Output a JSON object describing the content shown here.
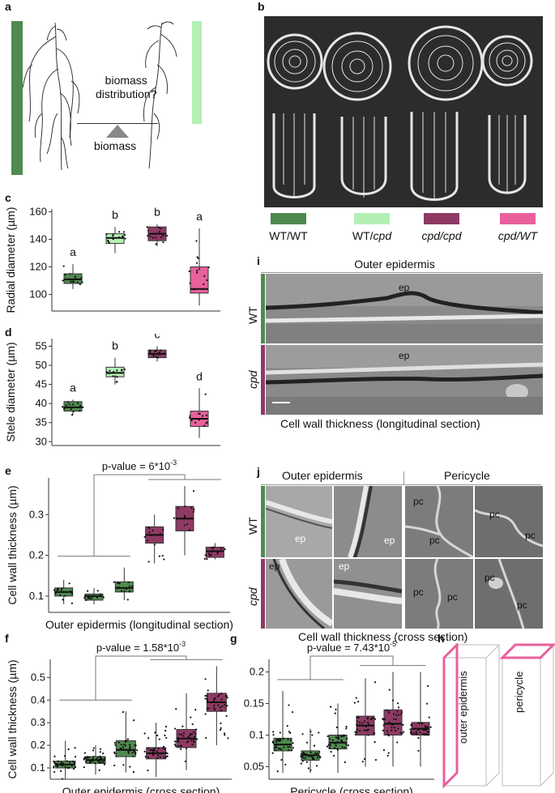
{
  "panels": {
    "a": {
      "label": "a",
      "question": [
        "biomass",
        "distribution?"
      ],
      "fulcrum_label": "biomass",
      "colors": {
        "left_bar": "#4f8a4f",
        "right_bar": "#b4f0b4"
      }
    },
    "b": {
      "label": "b",
      "legend": [
        {
          "label": "WT/WT",
          "italic_part": "",
          "color": "#4f8a4f"
        },
        {
          "label": "WT/",
          "italic_part": "cpd",
          "color": "#b4f0b4"
        },
        {
          "label": "",
          "italic_part": "cpd/cpd",
          "color": "#8e3a64"
        },
        {
          "label": "",
          "italic_part": "cpd/WT",
          "color": "#e8609c"
        }
      ]
    },
    "i": {
      "label": "i",
      "header": "Outer epidermis",
      "rows": [
        {
          "genotype": "WT",
          "tag": "ep"
        },
        {
          "genotype": "cpd",
          "tag": "ep"
        }
      ],
      "caption": "Cell wall thickness (longitudinal section)"
    },
    "j": {
      "label": "j",
      "headers": [
        "Outer epidermis",
        "Pericycle"
      ],
      "rows": [
        {
          "genotype": "WT",
          "tags": [
            [
              "ep"
            ],
            [
              "ep"
            ],
            [
              "pc",
              "pc"
            ],
            [
              "pc",
              "pc"
            ]
          ]
        },
        {
          "genotype": "cpd",
          "tags": [
            [
              "ep"
            ],
            [
              "ep"
            ],
            [
              "pc",
              "pc"
            ],
            [
              "pc",
              "pc"
            ]
          ]
        }
      ],
      "caption": "Cell wall thickness (cross section)"
    },
    "h": {
      "label": "h",
      "boxes": [
        "outer epidermis",
        "pericycle"
      ],
      "highlight_color": "#e8609c"
    }
  },
  "chart_data": [
    {
      "id": "c",
      "type": "box",
      "label": "c",
      "ylabel": "Radial diameter (µm)",
      "ylim": [
        88,
        162
      ],
      "yticks": [
        100,
        120,
        140,
        160
      ],
      "groups": [
        "WT/WT",
        "WT/cpd",
        "cpd/cpd",
        "cpd/WT"
      ],
      "boxes": [
        {
          "min": 104,
          "q1": 108,
          "median": 111,
          "q3": 115,
          "max": 122,
          "color": "#4f8a4f",
          "letter": "a"
        },
        {
          "min": 130,
          "q1": 137,
          "median": 141,
          "q3": 144,
          "max": 149,
          "color": "#b4f0b4",
          "letter": "b"
        },
        {
          "min": 135,
          "q1": 139,
          "median": 144,
          "q3": 149,
          "max": 151,
          "color": "#8e3a64",
          "letter": "b"
        },
        {
          "min": 92,
          "q1": 101,
          "median": 104,
          "q3": 120,
          "max": 148,
          "color": "#e8609c",
          "letter": "a"
        }
      ]
    },
    {
      "id": "d",
      "type": "box",
      "label": "d",
      "ylabel": "Stele diameter (µm)",
      "ylim": [
        29,
        57
      ],
      "yticks": [
        30,
        35,
        40,
        45,
        50,
        55
      ],
      "groups": [
        "WT/WT",
        "WT/cpd",
        "cpd/cpd",
        "cpd/WT"
      ],
      "boxes": [
        {
          "min": 37,
          "q1": 38,
          "median": 39,
          "q3": 40.5,
          "max": 41,
          "color": "#4f8a4f",
          "letter": "a"
        },
        {
          "min": 45,
          "q1": 47,
          "median": 48,
          "q3": 49.5,
          "max": 52,
          "color": "#b4f0b4",
          "letter": "b"
        },
        {
          "min": 51,
          "q1": 52,
          "median": 53,
          "q3": 54,
          "max": 55,
          "color": "#8e3a64",
          "letter": "c"
        },
        {
          "min": 31,
          "q1": 34,
          "median": 36,
          "q3": 38,
          "max": 44,
          "color": "#e8609c",
          "letter": "d"
        }
      ]
    },
    {
      "id": "e",
      "type": "box",
      "label": "e",
      "ylabel": "Cell wall thickness (µm)",
      "xlabel": "Outer epidermis (longitudinal section)",
      "pvalue": "p-value = 6*10",
      "pvalue_exp": "-3",
      "ylim": [
        0.06,
        0.39
      ],
      "yticks": [
        0.1,
        0.2,
        0.3
      ],
      "boxes": [
        {
          "min": 0.08,
          "q1": 0.1,
          "median": 0.11,
          "q3": 0.12,
          "max": 0.14,
          "color": "#4f8a4f"
        },
        {
          "min": 0.08,
          "q1": 0.09,
          "median": 0.1,
          "q3": 0.105,
          "max": 0.12,
          "color": "#4f8a4f"
        },
        {
          "min": 0.09,
          "q1": 0.11,
          "median": 0.12,
          "q3": 0.135,
          "max": 0.17,
          "color": "#4f8a4f"
        },
        {
          "min": 0.18,
          "q1": 0.23,
          "median": 0.25,
          "q3": 0.27,
          "max": 0.3,
          "color": "#8e3a64"
        },
        {
          "min": 0.2,
          "q1": 0.26,
          "median": 0.29,
          "q3": 0.32,
          "max": 0.37,
          "color": "#8e3a64"
        },
        {
          "min": 0.19,
          "q1": 0.195,
          "median": 0.21,
          "q3": 0.22,
          "max": 0.23,
          "color": "#8e3a64"
        }
      ]
    },
    {
      "id": "f",
      "type": "box",
      "label": "f",
      "ylabel": "Cell wall thickness (µm)",
      "xlabel": "Outer epidermis (cross section)",
      "pvalue": "p-value = 1.58*10",
      "pvalue_exp": "-3",
      "ylim": [
        0.05,
        0.58
      ],
      "yticks": [
        0.1,
        0.2,
        0.3,
        0.4,
        0.5
      ],
      "boxes": [
        {
          "min": 0.05,
          "q1": 0.1,
          "median": 0.115,
          "q3": 0.13,
          "max": 0.22,
          "color": "#4f8a4f"
        },
        {
          "min": 0.07,
          "q1": 0.12,
          "median": 0.135,
          "q3": 0.15,
          "max": 0.2,
          "color": "#4f8a4f"
        },
        {
          "min": 0.08,
          "q1": 0.15,
          "median": 0.18,
          "q3": 0.22,
          "max": 0.35,
          "color": "#4f8a4f"
        },
        {
          "min": 0.06,
          "q1": 0.14,
          "median": 0.165,
          "q3": 0.19,
          "max": 0.3,
          "color": "#8e3a64"
        },
        {
          "min": 0.09,
          "q1": 0.19,
          "median": 0.23,
          "q3": 0.27,
          "max": 0.43,
          "color": "#8e3a64"
        },
        {
          "min": 0.2,
          "q1": 0.35,
          "median": 0.39,
          "q3": 0.43,
          "max": 0.55,
          "color": "#8e3a64"
        }
      ]
    },
    {
      "id": "g",
      "type": "box",
      "label": "g",
      "ylabel": "",
      "xlabel": "Pericycle (cross section)",
      "pvalue": "p-value = 7.43*10",
      "pvalue_exp": "-5",
      "ylim": [
        0.03,
        0.22
      ],
      "yticks": [
        0.05,
        0.1,
        0.15,
        0.2
      ],
      "boxes": [
        {
          "min": 0.04,
          "q1": 0.075,
          "median": 0.085,
          "q3": 0.095,
          "max": 0.17,
          "color": "#4f8a4f"
        },
        {
          "min": 0.04,
          "q1": 0.06,
          "median": 0.068,
          "q3": 0.075,
          "max": 0.11,
          "color": "#4f8a4f"
        },
        {
          "min": 0.04,
          "q1": 0.078,
          "median": 0.088,
          "q3": 0.1,
          "max": 0.15,
          "color": "#4f8a4f"
        },
        {
          "min": 0.05,
          "q1": 0.1,
          "median": 0.115,
          "q3": 0.13,
          "max": 0.19,
          "color": "#8e3a64"
        },
        {
          "min": 0.05,
          "q1": 0.1,
          "median": 0.118,
          "q3": 0.14,
          "max": 0.2,
          "color": "#8e3a64"
        },
        {
          "min": 0.05,
          "q1": 0.1,
          "median": 0.11,
          "q3": 0.12,
          "max": 0.2,
          "color": "#8e3a64"
        }
      ]
    }
  ]
}
